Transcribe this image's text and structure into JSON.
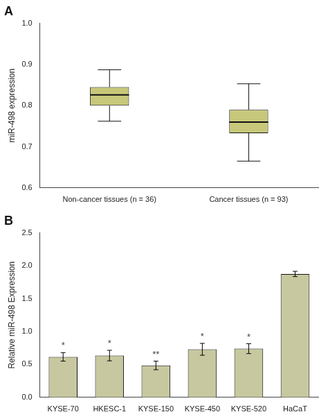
{
  "chart_data": [
    {
      "type": "box",
      "title": "A",
      "ylabel": "miR-498 expression",
      "categories": [
        "Non-cancer tissues (n = 36)",
        "Cancer tissues (n = 93)"
      ],
      "whisker_low": [
        0.762,
        0.665
      ],
      "q1": [
        0.8,
        0.733
      ],
      "median": [
        0.826,
        0.76
      ],
      "q3": [
        0.845,
        0.79
      ],
      "whisker_high": [
        0.887,
        0.853
      ],
      "color": "#c8c87a",
      "ylim": [
        0.6,
        1.0
      ],
      "yticks": [
        0.6,
        0.7,
        0.8,
        0.9,
        {
          "value": 1.0,
          "label": "1.0"
        }
      ],
      "grid": false
    },
    {
      "type": "bar",
      "title": "B",
      "ylabel": "Relative miR-498 Expression",
      "categories": [
        "KYSE-70",
        "HKESC-1",
        "KYSE-150",
        "KYSE-450",
        "KYSE-520",
        "HaCaT"
      ],
      "values": [
        0.615,
        0.635,
        0.485,
        0.73,
        0.74,
        1.875
      ],
      "errors": [
        0.065,
        0.08,
        0.065,
        0.09,
        0.075,
        0.04
      ],
      "annotations": [
        "*",
        "*",
        "**",
        "*",
        "*",
        null
      ],
      "color": "#c8c8a0",
      "ylim": [
        0,
        2.5
      ],
      "yticks": [
        {
          "value": 0,
          "label": "0.0"
        },
        0.5,
        {
          "value": 1.0,
          "label": "1.0"
        },
        1.5,
        {
          "value": 2.0,
          "label": "2.0"
        },
        2.5
      ],
      "grid": false
    }
  ]
}
